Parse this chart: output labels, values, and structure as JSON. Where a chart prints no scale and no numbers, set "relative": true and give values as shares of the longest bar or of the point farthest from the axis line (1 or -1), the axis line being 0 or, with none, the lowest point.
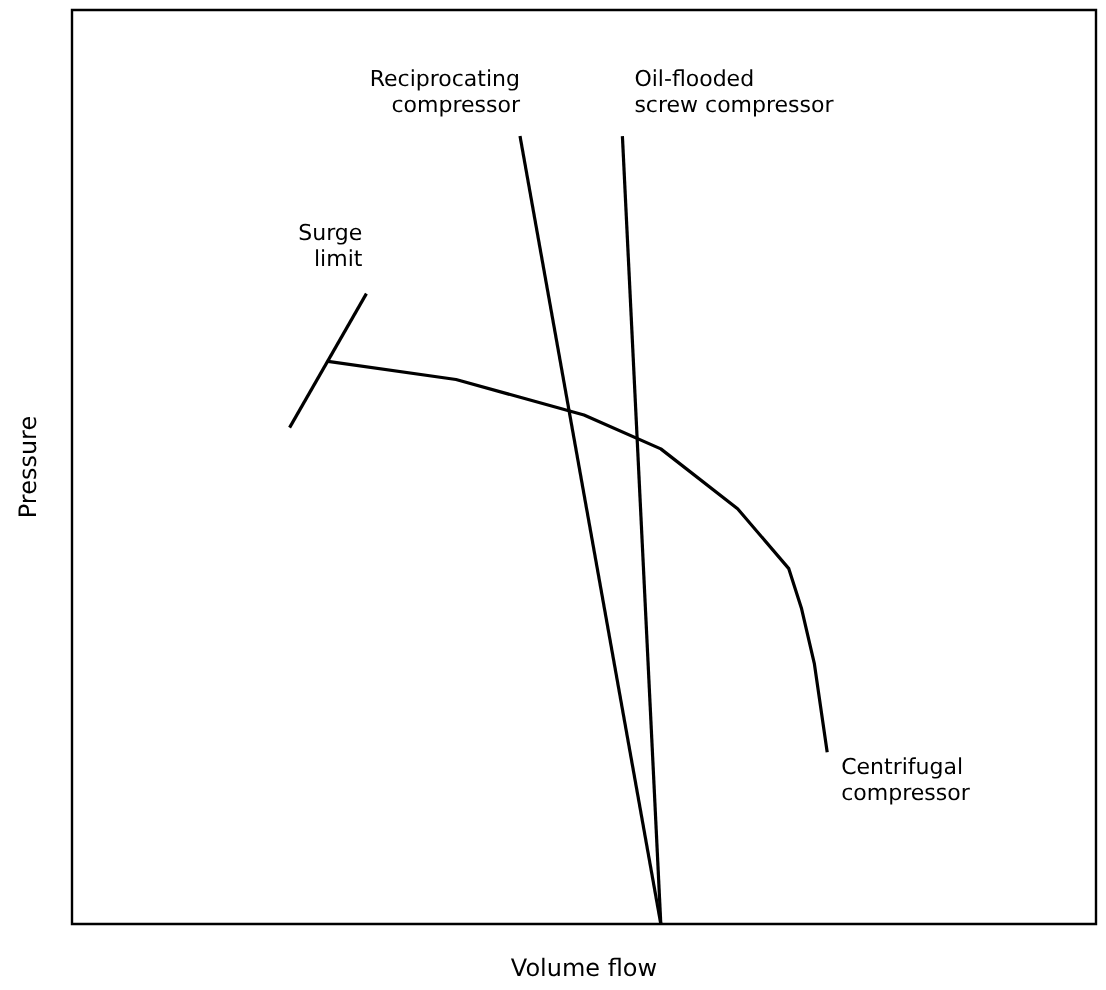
{
  "chart_data": {
    "type": "line",
    "relative": true,
    "xlabel": "Volume flow",
    "ylabel": "Pressure",
    "grid": false,
    "legend": false,
    "marker": "none",
    "line_style": "solid",
    "categories": [
      null,
      null,
      null,
      null,
      null,
      null,
      null,
      null,
      null,
      null,
      null,
      null,
      null,
      null,
      null,
      null,
      null,
      null,
      null,
      null,
      null,
      null,
      null,
      null,
      null,
      null,
      null,
      null,
      null,
      null,
      null,
      null,
      null,
      null,
      null,
      null,
      null,
      null,
      null,
      null,
      null,
      null,
      null,
      null,
      null,
      null,
      null,
      null,
      null,
      null,
      null,
      null,
      null,
      null,
      null,
      null,
      null,
      null,
      null,
      null,
      null,
      null,
      null,
      null,
      null,
      null,
      null,
      null,
      null,
      null,
      null,
      null,
      null,
      null,
      null,
      null,
      null,
      null,
      null,
      null,
      null
    ],
    "series": [
      {
        "name": "Reciprocating\ncompressor",
        "color": "#000000",
        "values": [
          null,
          null,
          null,
          null,
          null,
          null,
          null,
          null,
          null,
          null,
          null,
          null,
          null,
          null,
          null,
          null,
          null,
          null,
          null,
          null,
          null,
          null,
          null,
          null,
          null,
          null,
          null,
          null,
          null,
          null,
          null,
          null,
          null,
          null,
          null,
          1,
          null,
          null,
          null,
          null,
          null,
          null,
          null,
          null,
          null,
          null,
          0,
          null,
          null,
          null,
          null,
          null,
          null,
          null,
          null,
          null,
          null,
          null,
          null,
          null,
          null,
          null,
          null,
          null,
          null,
          null,
          null,
          null,
          null,
          null,
          null,
          null,
          null,
          null,
          null,
          null,
          null,
          null,
          null,
          null,
          null
        ]
      },
      {
        "name": "Oil-flooded\nscrew compressor",
        "color": "#000000",
        "values": [
          null,
          null,
          null,
          null,
          null,
          null,
          null,
          null,
          null,
          null,
          null,
          null,
          null,
          null,
          null,
          null,
          null,
          null,
          null,
          null,
          null,
          null,
          null,
          null,
          null,
          null,
          null,
          null,
          null,
          null,
          null,
          null,
          null,
          null,
          null,
          null,
          null,
          null,
          null,
          null,
          null,
          null,
          null,
          1,
          null,
          null,
          0,
          null,
          null,
          null,
          null,
          null,
          null,
          null,
          null,
          null,
          null,
          null,
          null,
          null,
          null,
          null,
          null,
          null,
          null,
          null,
          null,
          null,
          null,
          null,
          null,
          null,
          null,
          null,
          null,
          null,
          null,
          null,
          null,
          null,
          null
        ]
      },
      {
        "name": "Surge\nlimit",
        "color": "#000000",
        "values": [
          null,
          null,
          null,
          null,
          null,
          null,
          null,
          null,
          null,
          null,
          null,
          null,
          null,
          null,
          null,
          null,
          null,
          0.63,
          null,
          null,
          null,
          null,
          null,
          0.8,
          null,
          null,
          null,
          null,
          null,
          null,
          null,
          null,
          null,
          null,
          null,
          null,
          null,
          null,
          null,
          null,
          null,
          null,
          null,
          null,
          null,
          null,
          null,
          null,
          null,
          null,
          null,
          null,
          null,
          null,
          null,
          null,
          null,
          null,
          null,
          null,
          null,
          null,
          null,
          null,
          null,
          null,
          null,
          null,
          null,
          null,
          null,
          null,
          null,
          null,
          null,
          null,
          null,
          null,
          null,
          null,
          null
        ]
      },
      {
        "name": "Centrifugal\ncompressor",
        "color": "#000000",
        "values": [
          null,
          null,
          null,
          null,
          null,
          null,
          null,
          null,
          null,
          null,
          null,
          null,
          null,
          null,
          null,
          null,
          null,
          null,
          null,
          null,
          0.714,
          null,
          null,
          null,
          null,
          null,
          null,
          null,
          null,
          null,
          0.691,
          null,
          null,
          null,
          null,
          null,
          null,
          null,
          null,
          null,
          0.646,
          null,
          null,
          null,
          null,
          null,
          0.603,
          null,
          null,
          null,
          null,
          null,
          0.527,
          null,
          null,
          null,
          0.451,
          0.4,
          0.33,
          0.218,
          null,
          null,
          null,
          null,
          null,
          null,
          null,
          null,
          null,
          null,
          null,
          null,
          null,
          null,
          null,
          null,
          null,
          null,
          null,
          null,
          null
        ]
      }
    ]
  }
}
